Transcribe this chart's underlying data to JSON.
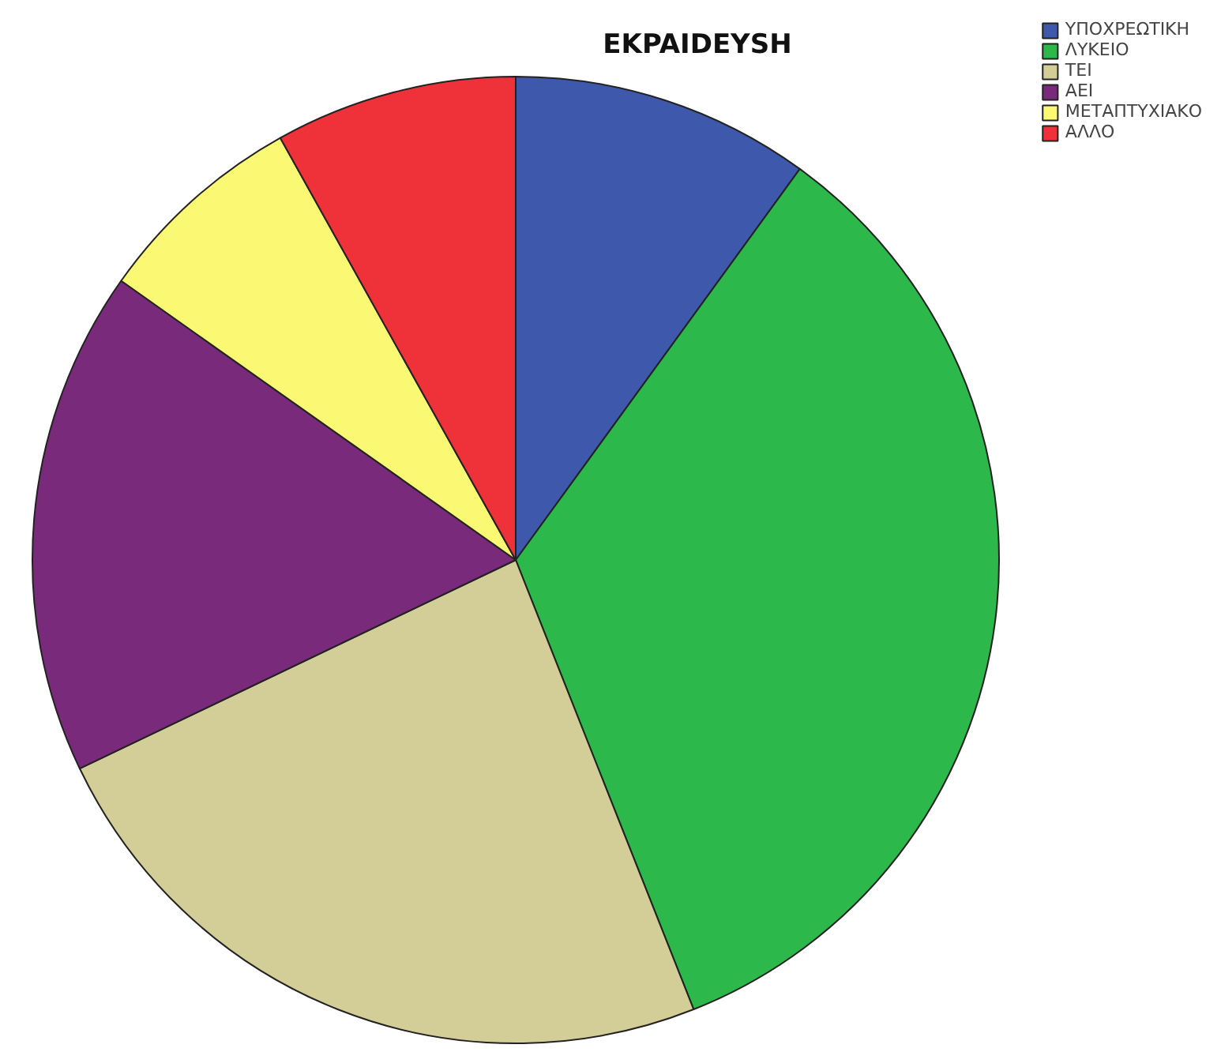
{
  "chart_data": {
    "type": "pie",
    "title": "EKPAIDEYSH",
    "categories": [
      "ΥΠΟΧΡΕΩΤΙΚΗ",
      "ΛΥΚΕΙΟ",
      "ΤΕΙ",
      "ΑΕΙ",
      "ΜΕΤΑΠΤΥΧΙΑΚΟ",
      "ΑΛΛΟ"
    ],
    "values": [
      10,
      34,
      23.9,
      16.9,
      7.1,
      8.1
    ],
    "colors": [
      "#3e58ac",
      "#2db84b",
      "#d3ce97",
      "#7a2a7b",
      "#fbf873",
      "#ef3239"
    ],
    "legend": "top right"
  }
}
